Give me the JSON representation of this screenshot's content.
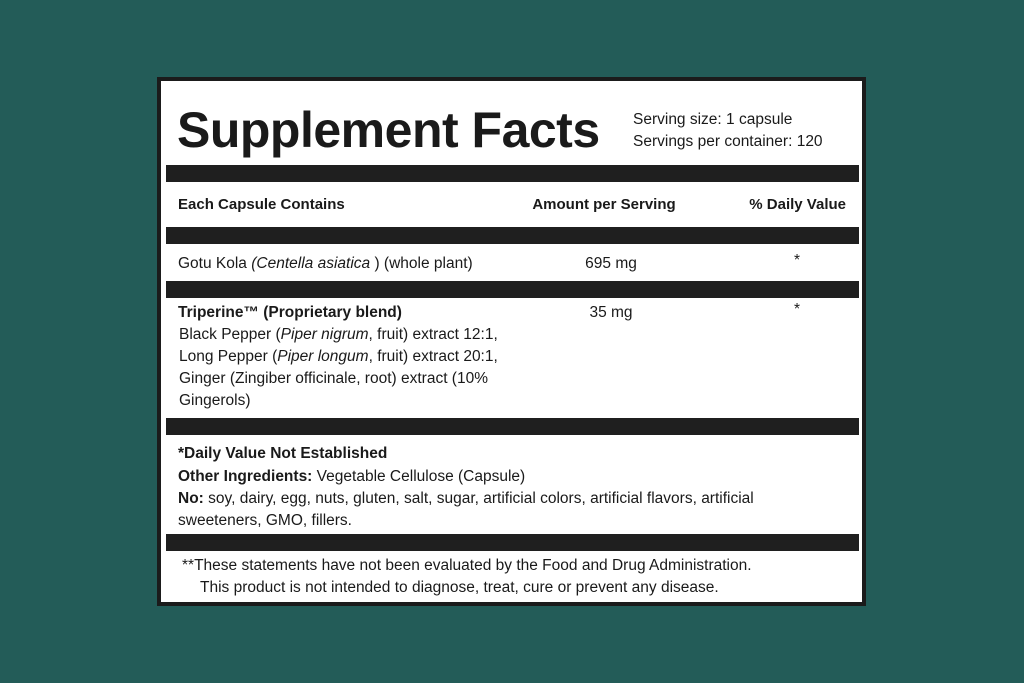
{
  "header": {
    "title": "Supplement Facts",
    "serving_size": "Serving size: 1 capsule",
    "servings_per_container": "Servings per container: 120"
  },
  "table": {
    "columns": [
      "Each Capsule Contains",
      "Amount per Serving",
      "% Daily Value"
    ],
    "rows": [
      {
        "name": [
          "Gotu Kola ",
          "(Centella asiatica",
          " ) (whole plant)"
        ],
        "amount": "695 mg",
        "daily_value": "*"
      },
      {
        "name": [
          "Triperine™ (Proprietary blend)"
        ],
        "details": [
          [
            "Black Pepper (",
            "Piper nigrum",
            ", fruit) extract 12:1,"
          ],
          [
            "Long Pepper (",
            "Piper longum",
            ", fruit) extract 20:1,"
          ],
          [
            "Ginger (Zingiber officinale, root) extract (10% Gingerols)"
          ]
        ],
        "amount": "35 mg",
        "daily_value": "*"
      }
    ]
  },
  "footer": {
    "daily_value_note": "*Daily Value Not Established",
    "other_ingredients": {
      "label": "Other Ingredients:",
      "value": "Vegetable Cellulose (Capsule)"
    },
    "free_of": {
      "label": "No:",
      "value": "soy, dairy, egg, nuts, gluten, salt, sugar, artificial colors, artificial flavors, artificial sweeteners, GMO, fillers."
    },
    "disclaimer": [
      "**These statements have not been evaluated by the Food and Drug Administration.",
      "This product is not intended to diagnose, treat, cure or prevent any disease."
    ]
  }
}
